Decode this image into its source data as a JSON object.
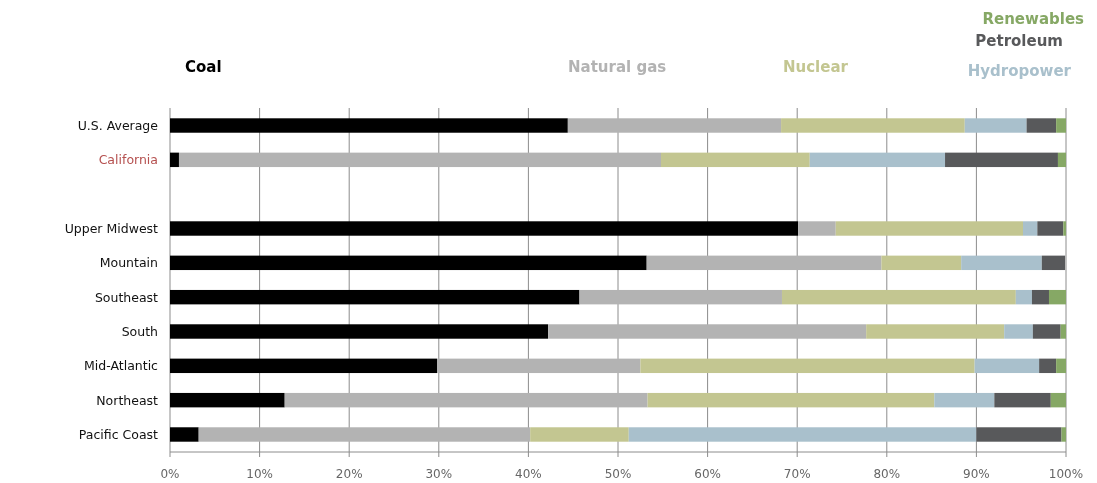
{
  "chart_data": {
    "type": "bar",
    "orientation": "horizontal",
    "stacked": true,
    "categories": [
      "U.S. Average",
      "California",
      null,
      "Upper Midwest",
      "Mountain",
      "Southeast",
      "South",
      "Mid-Atlantic",
      "Northeast",
      "Pacific Coast"
    ],
    "series": [
      {
        "name": "Coal",
        "color": "#000000",
        "values": [
          44.4,
          1.0,
          null,
          70.1,
          53.2,
          45.7,
          42.2,
          29.8,
          12.8,
          3.2
        ]
      },
      {
        "name": "Natural gas",
        "color": "#b3b3b3",
        "values": [
          23.8,
          53.8,
          null,
          4.2,
          26.2,
          22.6,
          35.5,
          22.7,
          40.5,
          37.0
        ]
      },
      {
        "name": "Nuclear",
        "color": "#c3c691",
        "values": [
          20.5,
          16.6,
          null,
          20.9,
          8.9,
          26.1,
          15.4,
          37.3,
          32.0,
          11.0
        ]
      },
      {
        "name": "Hydropower",
        "color": "#a9c0cc",
        "values": [
          6.9,
          15.1,
          null,
          1.6,
          9.0,
          1.8,
          3.2,
          7.2,
          6.7,
          38.8
        ]
      },
      {
        "name": "Petroleum",
        "color": "#58595b",
        "values": [
          3.3,
          12.6,
          null,
          2.9,
          2.6,
          1.9,
          3.1,
          1.9,
          6.3,
          9.5
        ]
      },
      {
        "name": "Renewables",
        "color": "#86a865",
        "values": [
          1.1,
          0.9,
          null,
          0.3,
          null,
          1.9,
          0.6,
          1.1,
          1.7,
          0.5
        ]
      }
    ],
    "xlim": [
      0,
      100
    ],
    "xticks": [
      {
        "value": 0,
        "label": "0%"
      },
      {
        "value": 10,
        "label": "10%"
      },
      {
        "value": 20,
        "label": "20%"
      },
      {
        "value": 30,
        "label": "30%"
      },
      {
        "value": 40,
        "label": "40%"
      },
      {
        "value": 50,
        "label": "50%"
      },
      {
        "value": 60,
        "label": "60%"
      },
      {
        "value": 70,
        "label": "70%"
      },
      {
        "value": 80,
        "label": "80%"
      },
      {
        "value": 90,
        "label": "90%"
      },
      {
        "value": 100,
        "label": "100%"
      }
    ],
    "grid": "x",
    "legend": "top"
  }
}
